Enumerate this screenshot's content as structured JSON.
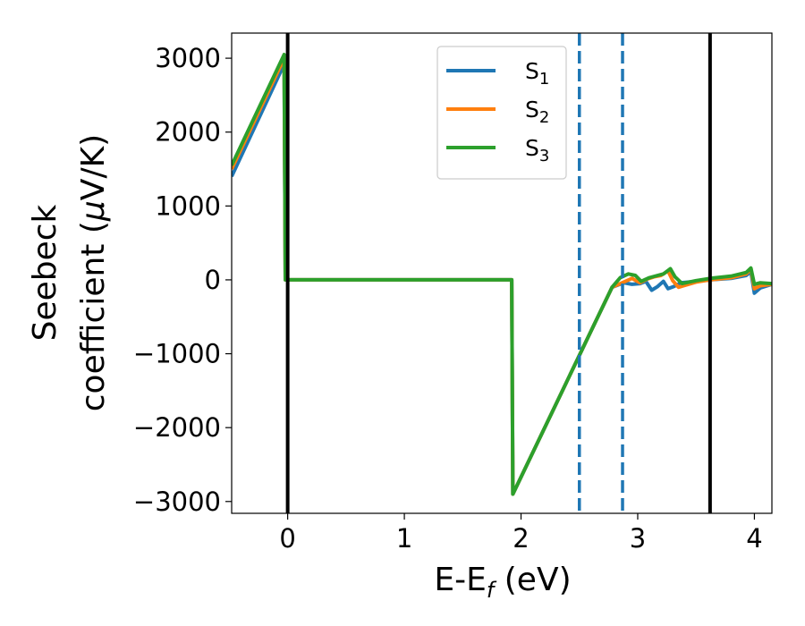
{
  "chart_data": {
    "type": "line",
    "title": "",
    "xlabel": "E-E",
    "xlabel_sub": "f",
    "xlabel_unit": " (eV)",
    "ylabel_line1": "Seebeck",
    "ylabel_line2_text": "coefficient  (",
    "ylabel_line2_mu": "μ",
    "ylabel_line2_unit": "V/K)",
    "xlim": [
      -0.48,
      4.15
    ],
    "ylim": [
      -3160,
      3340
    ],
    "x_ticks": [
      0,
      1,
      2,
      3,
      4
    ],
    "x_tick_labels": [
      "0",
      "1",
      "2",
      "3",
      "4"
    ],
    "y_ticks": [
      3000,
      2000,
      1000,
      0,
      -1000,
      -2000,
      -3000
    ],
    "y_tick_labels": [
      "3000",
      "2000",
      "1000",
      "0",
      "−1000",
      "−2000",
      "−3000"
    ],
    "grid": false,
    "legend_position": "upper-center",
    "vertical_lines": [
      {
        "x": 0.0,
        "style": "solid",
        "color": "#000000"
      },
      {
        "x": 3.62,
        "style": "solid",
        "color": "#000000"
      },
      {
        "x": 2.5,
        "style": "dashed",
        "color": "#1f77b4"
      },
      {
        "x": 2.87,
        "style": "dashed",
        "color": "#1f77b4"
      }
    ],
    "series": [
      {
        "name": "S",
        "sub": "1",
        "color": "#1f77b4",
        "x": [
          -0.48,
          -0.03,
          -0.02,
          1.92,
          1.93,
          2.5,
          2.78,
          2.88,
          2.95,
          3.02,
          3.07,
          3.12,
          3.17,
          3.22,
          3.26,
          3.31,
          3.37,
          3.5,
          3.62,
          3.8,
          3.93,
          3.97,
          4.0,
          4.05,
          4.15
        ],
        "y": [
          1400,
          2920,
          0,
          0,
          -2900,
          -1020,
          -100,
          -40,
          -60,
          -50,
          -20,
          -140,
          -90,
          -20,
          -120,
          -90,
          -40,
          -20,
          0,
          20,
          60,
          110,
          -180,
          -110,
          -60
        ]
      },
      {
        "name": "S",
        "sub": "2",
        "color": "#ff7f0e",
        "x": [
          -0.48,
          -0.03,
          -0.02,
          1.92,
          1.93,
          2.5,
          2.78,
          2.88,
          2.95,
          3.02,
          3.08,
          3.14,
          3.2,
          3.26,
          3.3,
          3.35,
          3.5,
          3.62,
          3.8,
          3.93,
          3.97,
          4.0,
          4.05,
          4.15
        ],
        "y": [
          1500,
          3000,
          0,
          0,
          -2900,
          -1020,
          -100,
          -30,
          20,
          -40,
          10,
          40,
          60,
          120,
          -10,
          -100,
          -30,
          0,
          30,
          80,
          150,
          -120,
          -80,
          -60
        ]
      },
      {
        "name": "S",
        "sub": "3",
        "color": "#2ca02c",
        "x": [
          -0.48,
          -0.03,
          -0.02,
          1.92,
          1.93,
          2.5,
          2.78,
          2.85,
          2.92,
          2.98,
          3.03,
          3.1,
          3.17,
          3.22,
          3.28,
          3.32,
          3.38,
          3.5,
          3.62,
          3.8,
          3.93,
          3.97,
          4.0,
          4.05,
          4.15
        ],
        "y": [
          1550,
          3050,
          0,
          0,
          -2900,
          -1020,
          -100,
          30,
          80,
          60,
          -20,
          30,
          60,
          80,
          150,
          40,
          -50,
          -10,
          20,
          50,
          100,
          160,
          -60,
          -40,
          -50
        ]
      }
    ]
  }
}
